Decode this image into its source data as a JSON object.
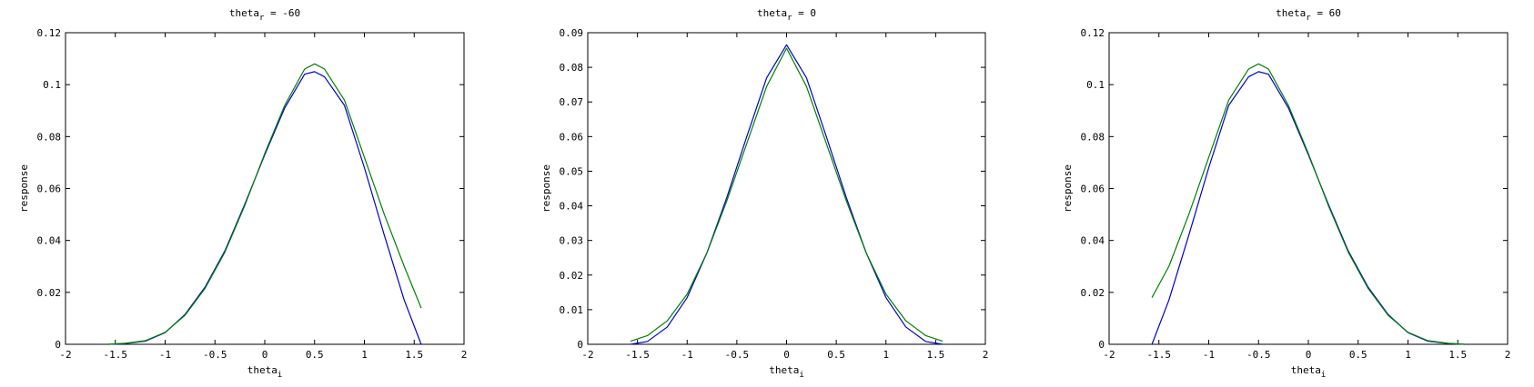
{
  "figure": {
    "background": "#ffffff"
  },
  "chart_data": [
    {
      "type": "line",
      "title": "theta_r = -60",
      "title_base": "theta",
      "title_sub": "r",
      "title_rest": " = -60",
      "xlabel_base": "theta",
      "xlabel_sub": "i",
      "ylabel": "response",
      "xlim": [
        -2,
        2
      ],
      "ylim": [
        0,
        0.12
      ],
      "xticks": [
        -2,
        -1.5,
        -1,
        -0.5,
        0,
        0.5,
        1,
        1.5,
        2
      ],
      "yticks": [
        0,
        0.02,
        0.04,
        0.06,
        0.08,
        0.1,
        0.12
      ],
      "grid": false,
      "series": [
        {
          "color": "#0000cc",
          "x": [
            -1.57,
            -1.4,
            -1.2,
            -1.0,
            -0.8,
            -0.6,
            -0.4,
            -0.2,
            0.0,
            0.2,
            0.4,
            0.5,
            0.6,
            0.8,
            1.0,
            1.2,
            1.4,
            1.57
          ],
          "y": [
            0.0,
            0.0003,
            0.0012,
            0.0045,
            0.0115,
            0.022,
            0.036,
            0.054,
            0.073,
            0.091,
            0.104,
            0.105,
            0.103,
            0.092,
            0.068,
            0.042,
            0.017,
            0.0
          ]
        },
        {
          "color": "#008000",
          "x": [
            -1.57,
            -1.4,
            -1.2,
            -1.0,
            -0.8,
            -0.6,
            -0.4,
            -0.2,
            0.0,
            0.2,
            0.4,
            0.5,
            0.6,
            0.8,
            1.0,
            1.2,
            1.4,
            1.57
          ],
          "y": [
            0.0,
            0.0004,
            0.0014,
            0.0046,
            0.0112,
            0.0215,
            0.0355,
            0.0535,
            0.0735,
            0.092,
            0.106,
            0.108,
            0.106,
            0.094,
            0.072,
            0.05,
            0.03,
            0.014
          ]
        }
      ]
    },
    {
      "type": "line",
      "title": "theta_r = 0",
      "title_base": "theta",
      "title_sub": "r",
      "title_rest": " = 0",
      "xlabel_base": "theta",
      "xlabel_sub": "i",
      "ylabel": "response",
      "xlim": [
        -2,
        2
      ],
      "ylim": [
        0,
        0.09
      ],
      "xticks": [
        -2,
        -1.5,
        -1,
        -0.5,
        0,
        0.5,
        1,
        1.5,
        2
      ],
      "yticks": [
        0,
        0.01,
        0.02,
        0.03,
        0.04,
        0.05,
        0.06,
        0.07,
        0.08,
        0.09
      ],
      "grid": false,
      "series": [
        {
          "color": "#0000cc",
          "x": [
            -1.57,
            -1.4,
            -1.2,
            -1.0,
            -0.8,
            -0.6,
            -0.4,
            -0.2,
            0.0,
            0.2,
            0.4,
            0.6,
            0.8,
            1.0,
            1.2,
            1.4,
            1.57
          ],
          "y": [
            0.0,
            0.0008,
            0.005,
            0.0135,
            0.0265,
            0.0425,
            0.06,
            0.077,
            0.0865,
            0.077,
            0.06,
            0.0425,
            0.0265,
            0.0135,
            0.005,
            0.0008,
            0.0
          ]
        },
        {
          "color": "#008000",
          "x": [
            -1.57,
            -1.4,
            -1.2,
            -1.0,
            -0.8,
            -0.6,
            -0.4,
            -0.2,
            0.0,
            0.2,
            0.4,
            0.6,
            0.8,
            1.0,
            1.2,
            1.4,
            1.57
          ],
          "y": [
            0.0009,
            0.0025,
            0.0068,
            0.0145,
            0.0265,
            0.0415,
            0.058,
            0.0745,
            0.0855,
            0.0745,
            0.058,
            0.0415,
            0.0265,
            0.0145,
            0.0068,
            0.0025,
            0.0009
          ]
        }
      ]
    },
    {
      "type": "line",
      "title": "theta_r = 60",
      "title_base": "theta",
      "title_sub": "r",
      "title_rest": " = 60",
      "xlabel_base": "theta",
      "xlabel_sub": "i",
      "ylabel": "response",
      "xlim": [
        -2,
        2
      ],
      "ylim": [
        0,
        0.12
      ],
      "xticks": [
        -2,
        -1.5,
        -1,
        -0.5,
        0,
        0.5,
        1,
        1.5,
        2
      ],
      "yticks": [
        0,
        0.02,
        0.04,
        0.06,
        0.08,
        0.1,
        0.12
      ],
      "grid": false,
      "series": [
        {
          "color": "#0000cc",
          "x": [
            -1.57,
            -1.4,
            -1.2,
            -1.0,
            -0.8,
            -0.6,
            -0.5,
            -0.4,
            -0.2,
            0.0,
            0.2,
            0.4,
            0.6,
            0.8,
            1.0,
            1.2,
            1.4,
            1.57
          ],
          "y": [
            0.0,
            0.017,
            0.042,
            0.068,
            0.092,
            0.103,
            0.105,
            0.104,
            0.091,
            0.073,
            0.054,
            0.036,
            0.022,
            0.0115,
            0.0045,
            0.0012,
            0.0003,
            0.0
          ]
        },
        {
          "color": "#008000",
          "x": [
            -1.57,
            -1.4,
            -1.2,
            -1.0,
            -0.8,
            -0.6,
            -0.5,
            -0.4,
            -0.2,
            0.0,
            0.2,
            0.4,
            0.6,
            0.8,
            1.0,
            1.2,
            1.4,
            1.57
          ],
          "y": [
            0.018,
            0.03,
            0.05,
            0.072,
            0.094,
            0.106,
            0.108,
            0.106,
            0.092,
            0.0735,
            0.0535,
            0.0355,
            0.0215,
            0.0112,
            0.0046,
            0.0014,
            0.0004,
            0.0
          ]
        }
      ]
    }
  ]
}
